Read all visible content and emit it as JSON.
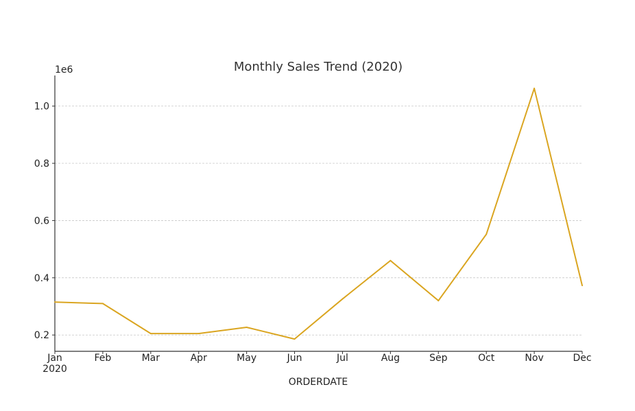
{
  "chart_data": {
    "type": "line",
    "title": "Monthly Sales Trend (2020)",
    "xlabel": "ORDERDATE",
    "ylabel": "",
    "y_offset_label": "1e6",
    "x_sublabel": "2020",
    "categories": [
      "Jan",
      "Feb",
      "Mar",
      "Apr",
      "May",
      "Jun",
      "Jul",
      "Aug",
      "Sep",
      "Oct",
      "Nov",
      "Dec"
    ],
    "series": [
      {
        "values": [
          315000,
          310000,
          205000,
          205000,
          227000,
          186000,
          326000,
          460000,
          320000,
          552000,
          1062000,
          373000
        ]
      }
    ],
    "y_ticks": [
      0.2,
      0.4,
      0.6,
      0.8,
      1.0
    ],
    "y_tick_labels": [
      "0.2",
      "0.4",
      "0.6",
      "0.8",
      "1.0"
    ],
    "y_scale": 1000000,
    "ylim": [
      143000,
      1107000
    ],
    "grid": "horizontal",
    "colors": {
      "line": "#DAA520",
      "grid": "#c8c8c8",
      "axis": "#333333"
    }
  }
}
